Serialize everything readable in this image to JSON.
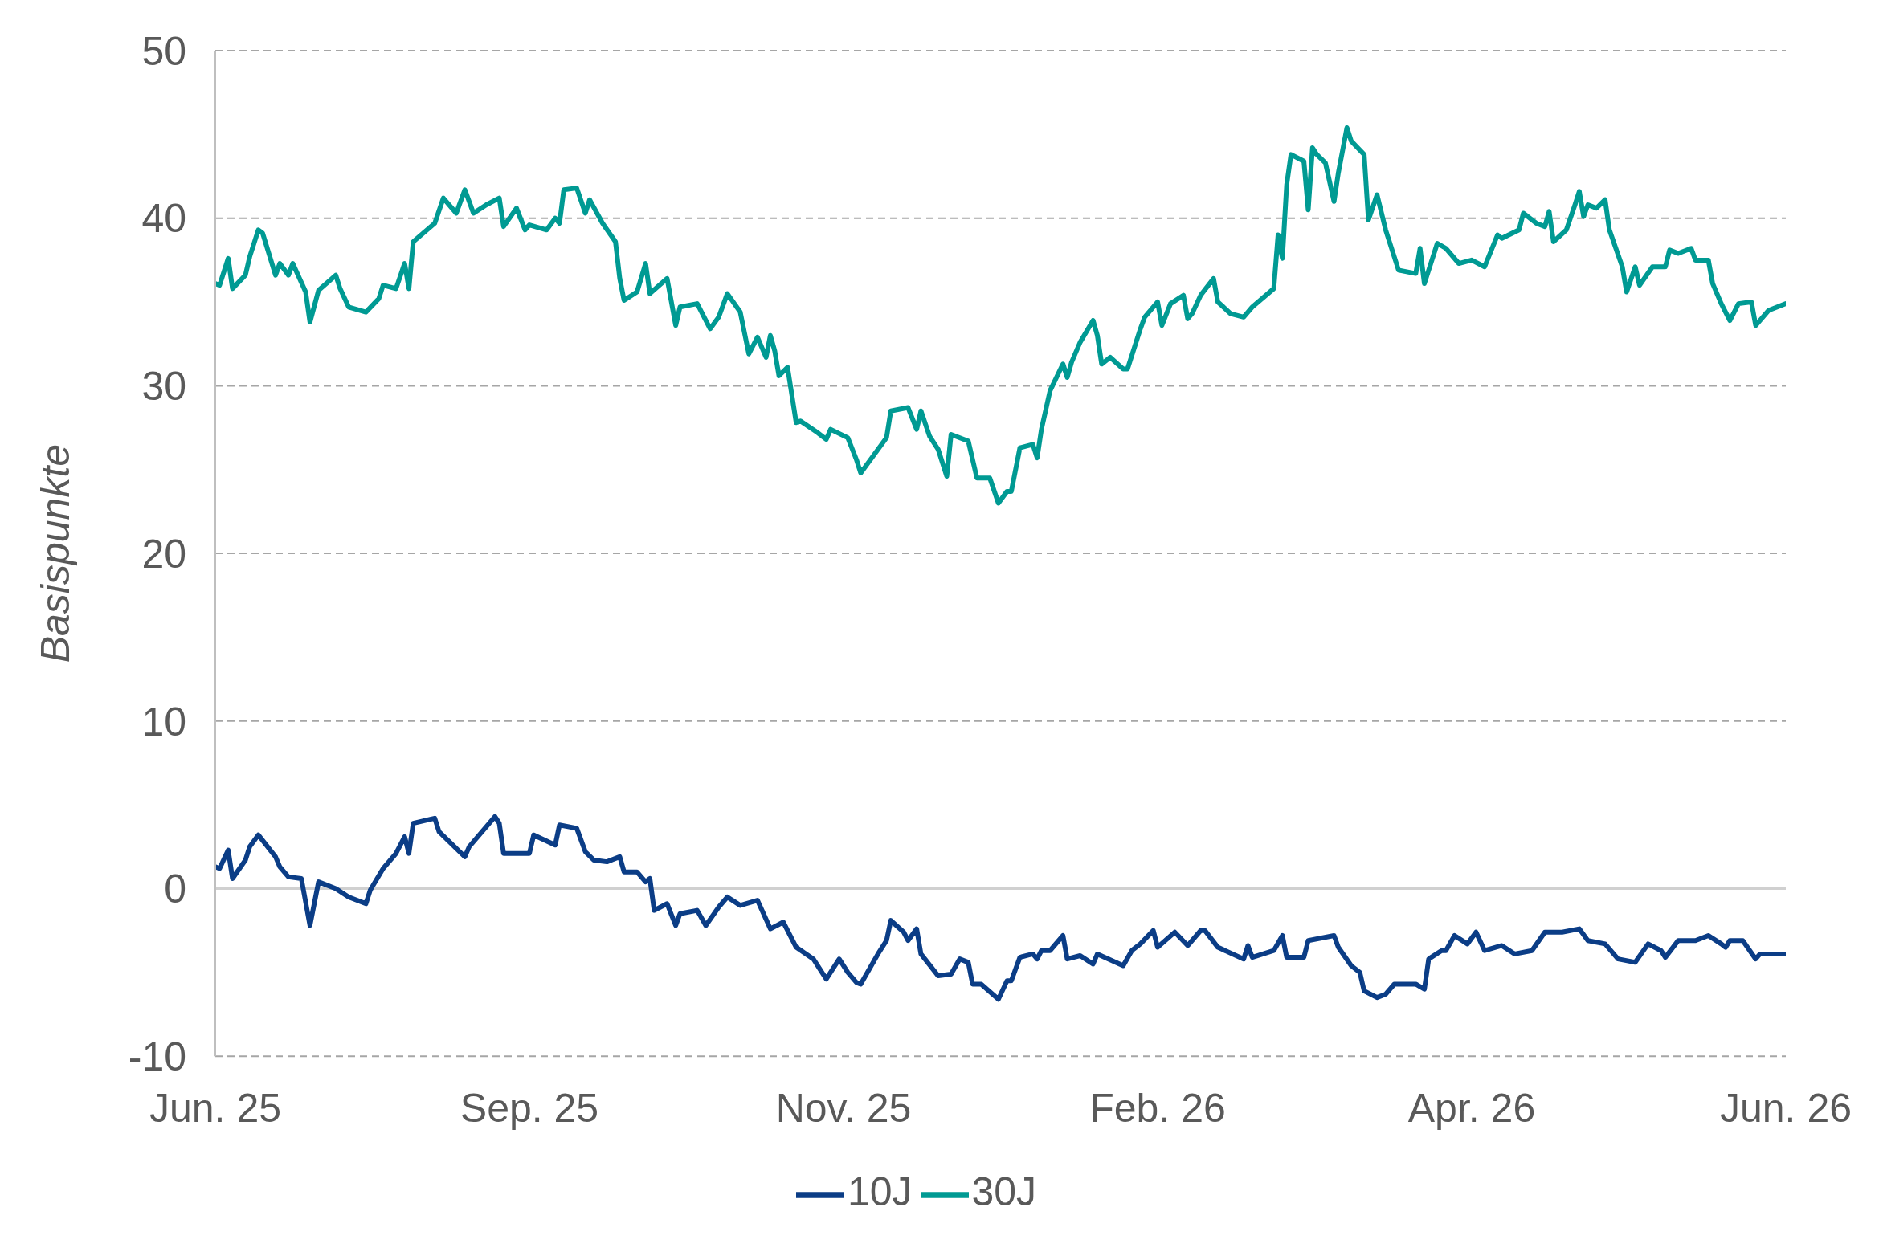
{
  "chart_data": {
    "type": "line",
    "ylabel": "Basispunkte",
    "xlim": [
      "2025-06-28",
      "2026-06-28"
    ],
    "xticks": [
      {
        "value": "2025-06-28",
        "label": "Jun. 25"
      },
      {
        "value": "2025-09-09",
        "label": "Sep. 25"
      },
      {
        "value": "2025-11-21",
        "label": "Nov. 25"
      },
      {
        "value": "2026-02-02",
        "label": "Feb. 26"
      },
      {
        "value": "2026-04-16",
        "label": "Apr. 26"
      },
      {
        "value": "2026-06-28",
        "label": "Jun. 26"
      }
    ],
    "ylim": [
      -10,
      50
    ],
    "yticks": [
      -10,
      0,
      10,
      20,
      30,
      40,
      50
    ],
    "grid": "y",
    "legend": "bottom",
    "marker": "none",
    "line_style": "solid",
    "ref_lines": [
      {
        "axis": "y",
        "value": 0,
        "color": "#d0d0d0",
        "line_style": "solid"
      }
    ],
    "series": [
      {
        "name": "10J",
        "color": "#0b3d86",
        "x": [
          "2025-06-28",
          "2025-06-29",
          "2025-07-01",
          "2025-07-02",
          "2025-07-05",
          "2025-07-06",
          "2025-07-08",
          "2025-07-12",
          "2025-07-13",
          "2025-07-15",
          "2025-07-18",
          "2025-07-20",
          "2025-07-22",
          "2025-07-26",
          "2025-07-29",
          "2025-08-02",
          "2025-08-03",
          "2025-08-06",
          "2025-08-09",
          "2025-08-11",
          "2025-08-12",
          "2025-08-13",
          "2025-08-18",
          "2025-08-19",
          "2025-08-25",
          "2025-08-26",
          "2025-09-01",
          "2025-09-02",
          "2025-09-03",
          "2025-09-09",
          "2025-09-10",
          "2025-09-15",
          "2025-09-16",
          "2025-09-20",
          "2025-09-22",
          "2025-09-24",
          "2025-09-27",
          "2025-09-30",
          "2025-10-01",
          "2025-10-04",
          "2025-10-06",
          "2025-10-07",
          "2025-10-08",
          "2025-10-11",
          "2025-10-13",
          "2025-10-14",
          "2025-10-18",
          "2025-10-20",
          "2025-10-23",
          "2025-10-25",
          "2025-10-28",
          "2025-11-01",
          "2025-11-04",
          "2025-11-07",
          "2025-11-10",
          "2025-11-14",
          "2025-11-17",
          "2025-11-20",
          "2025-11-22",
          "2025-11-24",
          "2025-11-25",
          "2025-11-29",
          "2025-12-01",
          "2025-12-02",
          "2025-12-05",
          "2025-12-06",
          "2025-12-08",
          "2025-12-09",
          "2025-12-13",
          "2025-12-16",
          "2025-12-18",
          "2025-12-20",
          "2025-12-21",
          "2025-12-23",
          "2025-12-27",
          "2025-12-29",
          "2025-12-30",
          "2026-01-01",
          "2026-01-04",
          "2026-01-05",
          "2026-01-06",
          "2026-01-08",
          "2026-01-11",
          "2026-01-12",
          "2026-01-15",
          "2026-01-18",
          "2026-01-19",
          "2026-01-25",
          "2026-01-27",
          "2026-01-29",
          "2026-02-01",
          "2026-02-02",
          "2026-02-06",
          "2026-02-09",
          "2026-02-12",
          "2026-02-13",
          "2026-02-16",
          "2026-02-22",
          "2026-02-23",
          "2026-02-24",
          "2026-03-01",
          "2026-03-03",
          "2026-03-04",
          "2026-03-08",
          "2026-03-09",
          "2026-03-15",
          "2026-03-16",
          "2026-03-19",
          "2026-03-21",
          "2026-03-22",
          "2026-03-25",
          "2026-03-27",
          "2026-03-29",
          "2026-04-03",
          "2026-04-05",
          "2026-04-06",
          "2026-04-09",
          "2026-04-10",
          "2026-04-12",
          "2026-04-15",
          "2026-04-17",
          "2026-04-19",
          "2026-04-23",
          "2026-04-26",
          "2026-04-30",
          "2026-05-03",
          "2026-05-07",
          "2026-05-11",
          "2026-05-13",
          "2026-05-17",
          "2026-05-20",
          "2026-05-24",
          "2026-05-27",
          "2026-05-30",
          "2026-05-31",
          "2026-06-03",
          "2026-06-07",
          "2026-06-10",
          "2026-06-13",
          "2026-06-14",
          "2026-06-15",
          "2026-06-18",
          "2026-06-21",
          "2026-06-22",
          "2026-06-28"
        ],
        "values": [
          1.3,
          1.2,
          2.3,
          0.6,
          1.7,
          2.5,
          3.2,
          1.9,
          1.3,
          0.7,
          0.6,
          -2.2,
          0.4,
          0.0,
          -0.5,
          -0.9,
          -0.1,
          1.2,
          2.1,
          3.1,
          2.1,
          3.9,
          4.2,
          3.4,
          1.9,
          2.5,
          4.3,
          3.9,
          2.1,
          2.1,
          3.2,
          2.6,
          3.8,
          3.6,
          2.2,
          1.7,
          1.6,
          1.9,
          1.0,
          1.0,
          0.4,
          0.6,
          -1.3,
          -0.9,
          -2.2,
          -1.5,
          -1.3,
          -2.2,
          -1.1,
          -0.5,
          -1.0,
          -0.7,
          -2.4,
          -2.0,
          -3.5,
          -4.2,
          -5.4,
          -4.2,
          -5.0,
          -5.6,
          -5.7,
          -3.9,
          -3.1,
          -1.9,
          -2.6,
          -3.1,
          -2.4,
          -3.9,
          -5.2,
          -5.1,
          -4.2,
          -4.4,
          -5.7,
          -5.7,
          -6.6,
          -5.5,
          -5.5,
          -4.1,
          -3.9,
          -4.2,
          -3.7,
          -3.7,
          -2.8,
          -4.2,
          -4.0,
          -4.5,
          -3.9,
          -4.6,
          -3.7,
          -3.3,
          -2.5,
          -3.5,
          -2.6,
          -3.4,
          -2.5,
          -2.5,
          -3.5,
          -4.2,
          -3.4,
          -4.1,
          -3.7,
          -2.8,
          -4.1,
          -4.1,
          -3.1,
          -2.8,
          -3.5,
          -4.6,
          -5.0,
          -6.1,
          -6.5,
          -6.3,
          -5.7,
          -5.7,
          -6.0,
          -4.2,
          -3.7,
          -3.7,
          -2.8,
          -3.3,
          -2.6,
          -3.7,
          -3.4,
          -3.9,
          -3.7,
          -2.6,
          -2.6,
          -2.4,
          -3.1,
          -3.3,
          -4.2,
          -4.4,
          -3.3,
          -3.7,
          -4.1,
          -3.1,
          -3.1,
          -2.8,
          -3.3,
          -3.5,
          -3.1,
          -3.1,
          -4.2,
          -3.9,
          -3.9
        ]
      },
      {
        "name": "30J",
        "color": "#009a93",
        "x": [
          "2025-06-28",
          "2025-06-29",
          "2025-07-01",
          "2025-07-02",
          "2025-07-05",
          "2025-07-06",
          "2025-07-08",
          "2025-07-09",
          "2025-07-12",
          "2025-07-13",
          "2025-07-15",
          "2025-07-16",
          "2025-07-19",
          "2025-07-20",
          "2025-07-22",
          "2025-07-26",
          "2025-07-27",
          "2025-07-29",
          "2025-08-02",
          "2025-08-05",
          "2025-08-06",
          "2025-08-09",
          "2025-08-11",
          "2025-08-12",
          "2025-08-13",
          "2025-08-18",
          "2025-08-20",
          "2025-08-23",
          "2025-08-25",
          "2025-08-27",
          "2025-08-30",
          "2025-09-02",
          "2025-09-03",
          "2025-09-06",
          "2025-09-08",
          "2025-09-09",
          "2025-09-13",
          "2025-09-15",
          "2025-09-16",
          "2025-09-17",
          "2025-09-20",
          "2025-09-22",
          "2025-09-23",
          "2025-09-26",
          "2025-09-29",
          "2025-09-30",
          "2025-10-01",
          "2025-10-04",
          "2025-10-06",
          "2025-10-07",
          "2025-10-11",
          "2025-10-13",
          "2025-10-14",
          "2025-10-18",
          "2025-10-21",
          "2025-10-23",
          "2025-10-25",
          "2025-10-28",
          "2025-10-30",
          "2025-11-01",
          "2025-11-03",
          "2025-11-04",
          "2025-11-05",
          "2025-11-06",
          "2025-11-08",
          "2025-11-10",
          "2025-11-11",
          "2025-11-15",
          "2025-11-17",
          "2025-11-18",
          "2025-11-22",
          "2025-11-24",
          "2025-11-25",
          "2025-12-01",
          "2025-12-02",
          "2025-12-06",
          "2025-12-08",
          "2025-12-09",
          "2025-12-11",
          "2025-12-13",
          "2025-12-15",
          "2025-12-16",
          "2025-12-20",
          "2025-12-22",
          "2025-12-25",
          "2025-12-27",
          "2025-12-29",
          "2025-12-30",
          "2026-01-01",
          "2026-01-04",
          "2026-01-05",
          "2026-01-06",
          "2026-01-08",
          "2026-01-11",
          "2026-01-12",
          "2026-01-13",
          "2026-01-15",
          "2026-01-18",
          "2026-01-19",
          "2026-01-20",
          "2026-01-22",
          "2026-01-25",
          "2026-01-26",
          "2026-01-29",
          "2026-01-30",
          "2026-02-02",
          "2026-02-03",
          "2026-02-05",
          "2026-02-08",
          "2026-02-09",
          "2026-02-10",
          "2026-02-12",
          "2026-02-15",
          "2026-02-16",
          "2026-02-19",
          "2026-02-22",
          "2026-02-24",
          "2026-03-01",
          "2026-03-02",
          "2026-03-03",
          "2026-03-04",
          "2026-03-05",
          "2026-03-08",
          "2026-03-09",
          "2026-03-10",
          "2026-03-11",
          "2026-03-13",
          "2026-03-15",
          "2026-03-16",
          "2026-03-18",
          "2026-03-19",
          "2026-03-22",
          "2026-03-23",
          "2026-03-25",
          "2026-03-27",
          "2026-03-30",
          "2026-04-03",
          "2026-04-04",
          "2026-04-05",
          "2026-04-08",
          "2026-04-10",
          "2026-04-13",
          "2026-04-16",
          "2026-04-19",
          "2026-04-22",
          "2026-04-23",
          "2026-04-27",
          "2026-04-28",
          "2026-05-01",
          "2026-05-03",
          "2026-05-04",
          "2026-05-05",
          "2026-05-08",
          "2026-05-10",
          "2026-05-11",
          "2026-05-12",
          "2026-05-13",
          "2026-05-15",
          "2026-05-17",
          "2026-05-18",
          "2026-05-21",
          "2026-05-22",
          "2026-05-24",
          "2026-05-25",
          "2026-05-28",
          "2026-05-31",
          "2026-06-01",
          "2026-06-03",
          "2026-06-06",
          "2026-06-07",
          "2026-06-10",
          "2026-06-11",
          "2026-06-13",
          "2026-06-15",
          "2026-06-17",
          "2026-06-20",
          "2026-06-21",
          "2026-06-24",
          "2026-06-28"
        ],
        "values": [
          36.1,
          36.0,
          37.6,
          35.8,
          36.6,
          37.7,
          39.3,
          39.1,
          36.6,
          37.3,
          36.6,
          37.3,
          35.6,
          33.8,
          35.7,
          36.6,
          35.8,
          34.7,
          34.4,
          35.2,
          36.0,
          35.8,
          37.3,
          35.8,
          38.6,
          39.7,
          41.2,
          40.3,
          41.7,
          40.3,
          40.8,
          41.2,
          39.5,
          40.6,
          39.3,
          39.6,
          39.3,
          40.0,
          39.7,
          41.7,
          41.8,
          40.3,
          41.1,
          39.7,
          38.6,
          36.4,
          35.1,
          35.6,
          37.3,
          35.5,
          36.4,
          33.6,
          34.7,
          34.9,
          33.4,
          34.1,
          35.5,
          34.4,
          31.9,
          32.9,
          31.7,
          33.0,
          32.1,
          30.6,
          31.1,
          27.8,
          27.9,
          27.2,
          26.8,
          27.4,
          26.9,
          25.6,
          24.8,
          26.9,
          28.5,
          28.7,
          27.4,
          28.5,
          27.0,
          26.2,
          24.6,
          27.1,
          26.7,
          24.5,
          24.5,
          23.0,
          23.7,
          23.7,
          26.3,
          26.5,
          25.7,
          27.4,
          29.7,
          31.3,
          30.5,
          31.4,
          32.6,
          33.9,
          33.0,
          31.3,
          31.7,
          31.0,
          31.0,
          33.4,
          34.1,
          35.0,
          33.6,
          34.9,
          35.4,
          34.0,
          34.3,
          35.4,
          36.4,
          35.0,
          34.3,
          34.1,
          34.7,
          35.8,
          39.0,
          37.6,
          42.0,
          43.8,
          43.4,
          40.5,
          44.2,
          43.8,
          43.3,
          41.0,
          42.7,
          45.4,
          44.6,
          43.8,
          39.9,
          41.4,
          39.3,
          36.9,
          36.7,
          38.2,
          36.1,
          38.5,
          38.2,
          37.3,
          37.5,
          37.1,
          39.0,
          38.8,
          39.3,
          40.3,
          39.7,
          39.5,
          40.4,
          38.6,
          39.3,
          40.8,
          41.6,
          40.1,
          40.8,
          40.6,
          41.1,
          39.3,
          37.1,
          35.6,
          37.1,
          36.0,
          37.1,
          37.1,
          38.1,
          37.9,
          38.2,
          37.5,
          37.5,
          36.1,
          34.9,
          33.9,
          34.9,
          35.0,
          33.6,
          34.5,
          34.9
        ]
      }
    ]
  }
}
